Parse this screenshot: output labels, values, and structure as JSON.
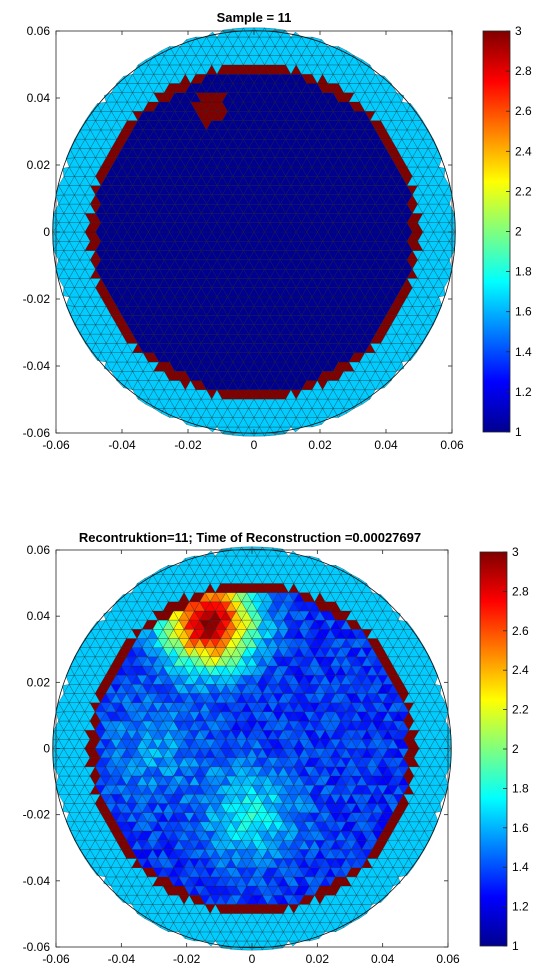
{
  "chart_data": [
    {
      "type": "heatmap",
      "title": "Sample = 11",
      "xlim": [
        -0.06,
        0.06
      ],
      "ylim": [
        -0.06,
        0.06
      ],
      "xticks": [
        "-0.06",
        "-0.04",
        "-0.02",
        "0",
        "0.02",
        "0.04",
        "0.06"
      ],
      "yticks": [
        "0.06",
        "0.04",
        "0.02",
        "0",
        "-0.02",
        "-0.04",
        "-0.06"
      ],
      "colorbar": {
        "range": [
          1,
          3
        ],
        "ticks": [
          "3",
          "2.8",
          "2.6",
          "2.4",
          "2.2",
          "2",
          "1.8",
          "1.6",
          "1.4",
          "1.2",
          "1"
        ]
      },
      "mesh": {
        "outer_radius": 0.061,
        "outer_value": 1.65,
        "ring_radii": [
          0.048,
          0.05
        ],
        "ring_value": 3.0,
        "inner_value": 1.0,
        "inclusions": [
          {
            "x": -0.013,
            "y": 0.037,
            "r": 0.005,
            "value": 3.0
          }
        ]
      }
    },
    {
      "type": "heatmap",
      "title": "Recontruktion=11; Time of Reconstruction =0.00027697",
      "xlim": [
        -0.06,
        0.06
      ],
      "ylim": [
        -0.06,
        0.06
      ],
      "xticks": [
        "-0.06",
        "-0.04",
        "-0.02",
        "0",
        "0.02",
        "0.04",
        "0.06"
      ],
      "yticks": [
        "0.06",
        "0.04",
        "0.02",
        "0",
        "-0.02",
        "-0.04",
        "-0.06"
      ],
      "colorbar": {
        "range": [
          1,
          3
        ],
        "ticks": [
          "3",
          "2.8",
          "2.6",
          "2.4",
          "2.2",
          "2",
          "1.8",
          "1.6",
          "1.4",
          "1.2",
          "1"
        ]
      },
      "mesh": {
        "outer_radius": 0.061,
        "outer_value": 1.65,
        "ring_radii": [
          0.048,
          0.05
        ],
        "ring_value": 3.0,
        "inner_value": 1.35,
        "inclusions": [
          {
            "x": -0.013,
            "y": 0.038,
            "r": 0.013,
            "value": 3.0
          },
          {
            "x": 0.0,
            "y": -0.02,
            "r": 0.014,
            "value": 1.75
          },
          {
            "x": -0.03,
            "y": 0.0,
            "r": 0.015,
            "value": 1.55
          }
        ]
      }
    }
  ]
}
